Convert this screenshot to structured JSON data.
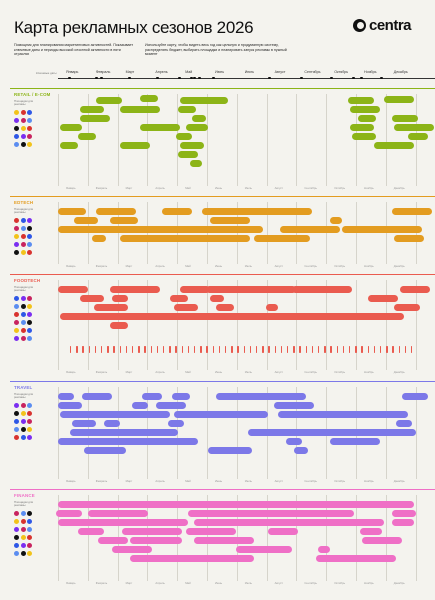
{
  "header": {
    "title": "Карта рекламных сезонов 2026",
    "logo": "centra",
    "intro_left": "Помощник для планирования маркетинговых активностей. Показывает ключевые даты и периоды высокой сезонной активности в пяти отраслях",
    "intro_right": "Используйте карту, чтобы видеть весь год как цельную и продуманную систему, распределять бюджет, выбирать площадки и планировать запуск рекламы в нужный момент"
  },
  "timeline": {
    "label": "Ключевые даты",
    "months": [
      "Январь",
      "Февраль",
      "Март",
      "Апрель",
      "Май",
      "Июнь",
      "Июль",
      "Август",
      "Сентябрь",
      "Октябрь",
      "Ноябрь",
      "Декабрь"
    ]
  },
  "sections": [
    {
      "name": "RETAIL / E-COM",
      "color": "#8cb417",
      "sub": "Площадки для рекламы"
    },
    {
      "name": "EDTECH",
      "color": "#e39c20",
      "sub": "Площадки для рекламы"
    },
    {
      "name": "FOODTECH",
      "color": "#ea5b4f",
      "sub": "Площадки для рекламы"
    },
    {
      "name": "TRAVEL",
      "color": "#7c78e8",
      "sub": "Площадки для рекламы"
    },
    {
      "name": "FINANCE",
      "color": "#ef6fc6",
      "sub": "Площадки для рекламы"
    }
  ]
}
